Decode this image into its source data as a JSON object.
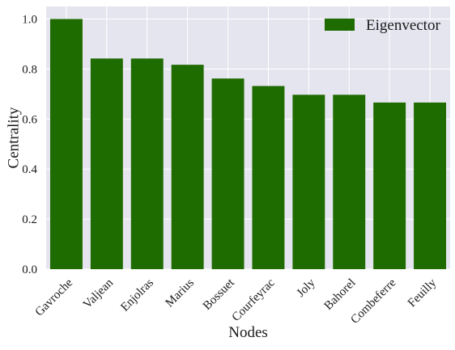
{
  "chart_data": {
    "type": "bar",
    "categories": [
      "Gavroche",
      "Valjean",
      "Enjolras",
      "Marius",
      "Bossuet",
      "Courfeyrac",
      "Joly",
      "Bahorel",
      "Combeferre",
      "Feuilly"
    ],
    "series": [
      {
        "name": "Eigenvector",
        "values": [
          1.0,
          0.842,
          0.842,
          0.817,
          0.762,
          0.732,
          0.697,
          0.697,
          0.666,
          0.666
        ]
      }
    ],
    "xlabel": "Nodes",
    "ylabel": "Centrality",
    "ylim": [
      0,
      1.05
    ],
    "yticks": [
      "0.0",
      "0.2",
      "0.4",
      "0.6",
      "0.8",
      "1.0"
    ],
    "grid": true,
    "legend_position": "top-right",
    "colors": {
      "bar": "#1e6b00",
      "background": "#e5e5ef",
      "grid": "#ffffff"
    }
  }
}
